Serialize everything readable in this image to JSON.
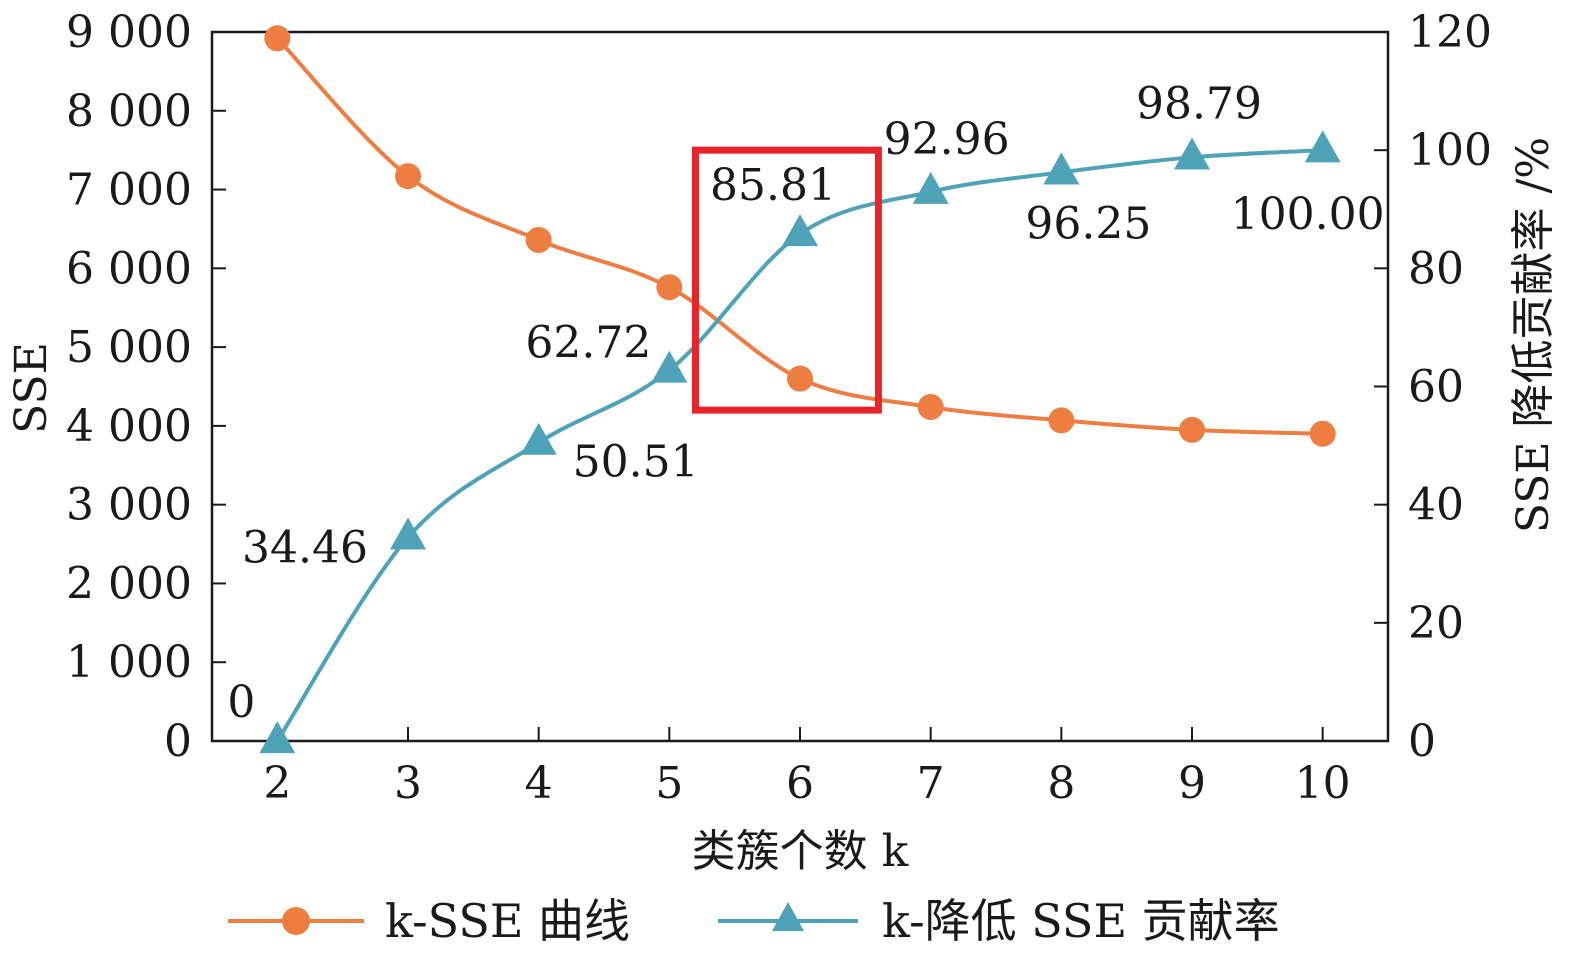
{
  "chart_data": {
    "type": "line",
    "x": [
      2,
      3,
      4,
      5,
      6,
      7,
      8,
      9,
      10
    ],
    "xlabel": "类簇个数 k",
    "ylabel_left": "SSE",
    "ylabel_right": "SSE 降低贡献率 /%",
    "ylim_left": [
      0,
      9000
    ],
    "ylim_right": [
      0,
      120
    ],
    "xticks": [
      "2",
      "3",
      "4",
      "5",
      "6",
      "7",
      "8",
      "9",
      "10"
    ],
    "yticks_left": [
      "0",
      "1 000",
      "2 000",
      "3 000",
      "4 000",
      "5 000",
      "6 000",
      "7 000",
      "8 000",
      "9 000"
    ],
    "yticks_right": [
      "0",
      "20",
      "40",
      "60",
      "80",
      "100",
      "120"
    ],
    "series": [
      {
        "name": "k-SSE 曲线",
        "axis": "left",
        "color": "#ED7D41",
        "marker": "circle",
        "values": [
          8920,
          7170,
          6360,
          5760,
          4600,
          4240,
          4070,
          3950,
          3900
        ]
      },
      {
        "name": "k-降低 SSE 贡献率",
        "axis": "right",
        "color": "#4FA3B8",
        "marker": "triangle",
        "values": [
          0,
          34.46,
          50.51,
          62.72,
          85.81,
          92.96,
          96.25,
          98.79,
          100.0
        ],
        "data_labels": [
          "0",
          "34.46",
          "50.51",
          "62.72",
          "85.81",
          "92.96",
          "96.25",
          "98.79",
          "100.00"
        ]
      }
    ],
    "annotation": {
      "type": "highlight-box",
      "color": "#E8242B",
      "x_range": [
        5.2,
        6.6
      ],
      "y_range_left": [
        4200,
        7500
      ]
    },
    "legend": {
      "position": "bottom",
      "items": [
        "k-SSE 曲线",
        "k-降低 SSE 贡献率"
      ]
    },
    "grid": false
  }
}
